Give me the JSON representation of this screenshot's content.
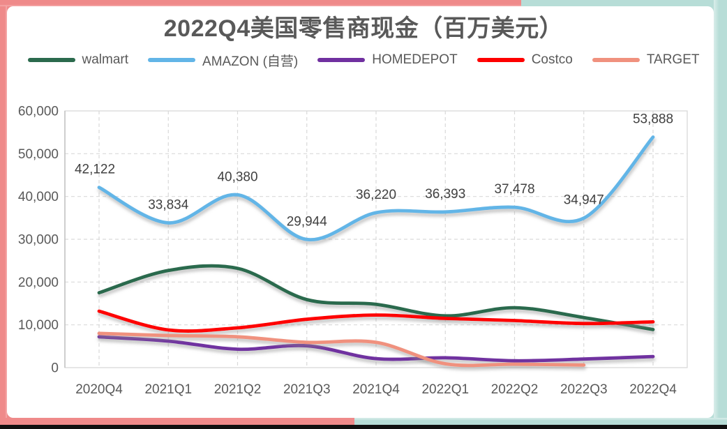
{
  "frame": {
    "pink": "#EF8A8A",
    "pink_light": "#F6AFAF",
    "teal": "#B7DDD7",
    "teal_light": "#D9EDEA",
    "bottom_strip": "#101010"
  },
  "chart_data": {
    "type": "line",
    "title": "2022Q4美国零售商现金（百万美元）",
    "categories": [
      "2020Q4",
      "2021Q1",
      "2021Q2",
      "2021Q3",
      "2021Q4",
      "2022Q1",
      "2022Q2",
      "2022Q3",
      "2022Q4"
    ],
    "series": [
      {
        "name": "walmart",
        "color": "#2B6A4D",
        "values": [
          17500,
          22700,
          23200,
          15900,
          14800,
          12100,
          14000,
          11700,
          8900
        ]
      },
      {
        "name": "AMAZON (自营)",
        "color": "#62B5E7",
        "values": [
          42122,
          33834,
          40380,
          29944,
          36220,
          36393,
          37478,
          34947,
          53888
        ],
        "value_labels": [
          "42,122",
          "33,834",
          "40,380",
          "29,944",
          "36,220",
          "36,393",
          "37,478",
          "34,947",
          "53,888"
        ]
      },
      {
        "name": "HOMEDEPOT",
        "color": "#7030A0",
        "values": [
          7200,
          6200,
          4300,
          5100,
          2100,
          2300,
          1600,
          2000,
          2600
        ]
      },
      {
        "name": "Costco",
        "color": "#FE0000",
        "values": [
          13200,
          8800,
          9300,
          11300,
          12300,
          11500,
          11000,
          10300,
          10700
        ]
      },
      {
        "name": "TARGET",
        "color": "#F0917E",
        "values": [
          8000,
          7500,
          7200,
          5900,
          5900,
          900,
          800,
          600,
          null
        ]
      }
    ],
    "y_axis": {
      "min": 0,
      "max": 60000,
      "step": 10000,
      "tick_labels": [
        "0",
        "10,000",
        "20,000",
        "30,000",
        "40,000",
        "50,000",
        "60,000"
      ]
    },
    "grid": "dashed",
    "legend_position": "top",
    "smooth_lines": true,
    "axis_text_color": "#595959",
    "data_label_color": "#404040",
    "gridline_color": "#D9D9D9"
  }
}
